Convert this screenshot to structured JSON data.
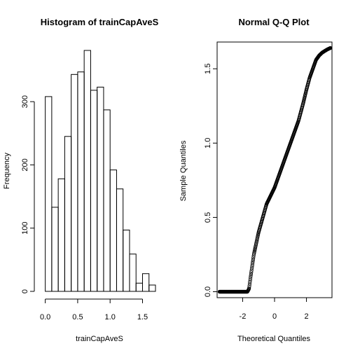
{
  "chart_data": [
    {
      "type": "bar",
      "title": "Histogram of trainCapAveS",
      "xlabel": "trainCapAveS",
      "ylabel": "Frequency",
      "bin_width": 0.1,
      "bin_starts": [
        0.0,
        0.1,
        0.2,
        0.3,
        0.4,
        0.5,
        0.6,
        0.7,
        0.8,
        0.9,
        1.0,
        1.1,
        1.2,
        1.3,
        1.4,
        1.5,
        1.6
      ],
      "values": [
        308,
        133,
        178,
        245,
        343,
        347,
        381,
        318,
        323,
        287,
        192,
        162,
        97,
        59,
        13,
        28,
        10
      ],
      "xlim": [
        -0.05,
        1.7
      ],
      "ylim": [
        0,
        381
      ],
      "xticks": [
        0.0,
        0.5,
        1.0,
        1.5
      ],
      "xtick_labels": [
        "0.0",
        "0.5",
        "1.0",
        "1.5"
      ],
      "yticks": [
        0,
        100,
        200,
        300
      ],
      "ytick_labels": [
        "0",
        "100",
        "200",
        "300"
      ],
      "grid": false
    },
    {
      "type": "scatter",
      "title": "Normal Q-Q Plot",
      "xlabel": "Theoretical Quantiles",
      "ylabel": "Sample Quantiles",
      "xlim": [
        -3.6,
        3.6
      ],
      "ylim": [
        -0.04,
        1.68
      ],
      "xticks": [
        -2,
        0,
        2
      ],
      "xtick_labels": [
        "-2",
        "0",
        "2"
      ],
      "yticks": [
        0.0,
        0.5,
        1.0,
        1.5
      ],
      "ytick_labels": [
        "0.0",
        "0.5",
        "1.0",
        "1.5"
      ],
      "grid": false,
      "curve": {
        "x": [
          -3.45,
          -3.2,
          -3.0,
          -2.8,
          -2.6,
          -2.4,
          -2.2,
          -2.0,
          -1.85,
          -1.7,
          -1.6,
          -1.5,
          -1.3,
          -1.0,
          -0.5,
          0.0,
          0.5,
          1.0,
          1.5,
          1.8,
          2.0,
          2.2,
          2.4,
          2.6,
          2.8,
          3.0,
          3.15,
          3.3,
          3.5
        ],
        "y": [
          0.0,
          0.0,
          0.0,
          0.0,
          0.0,
          0.0,
          0.0,
          0.0,
          0.0,
          0.0,
          0.02,
          0.1,
          0.25,
          0.4,
          0.59,
          0.7,
          0.85,
          1.0,
          1.15,
          1.27,
          1.36,
          1.44,
          1.5,
          1.56,
          1.59,
          1.61,
          1.62,
          1.63,
          1.64
        ]
      }
    }
  ]
}
